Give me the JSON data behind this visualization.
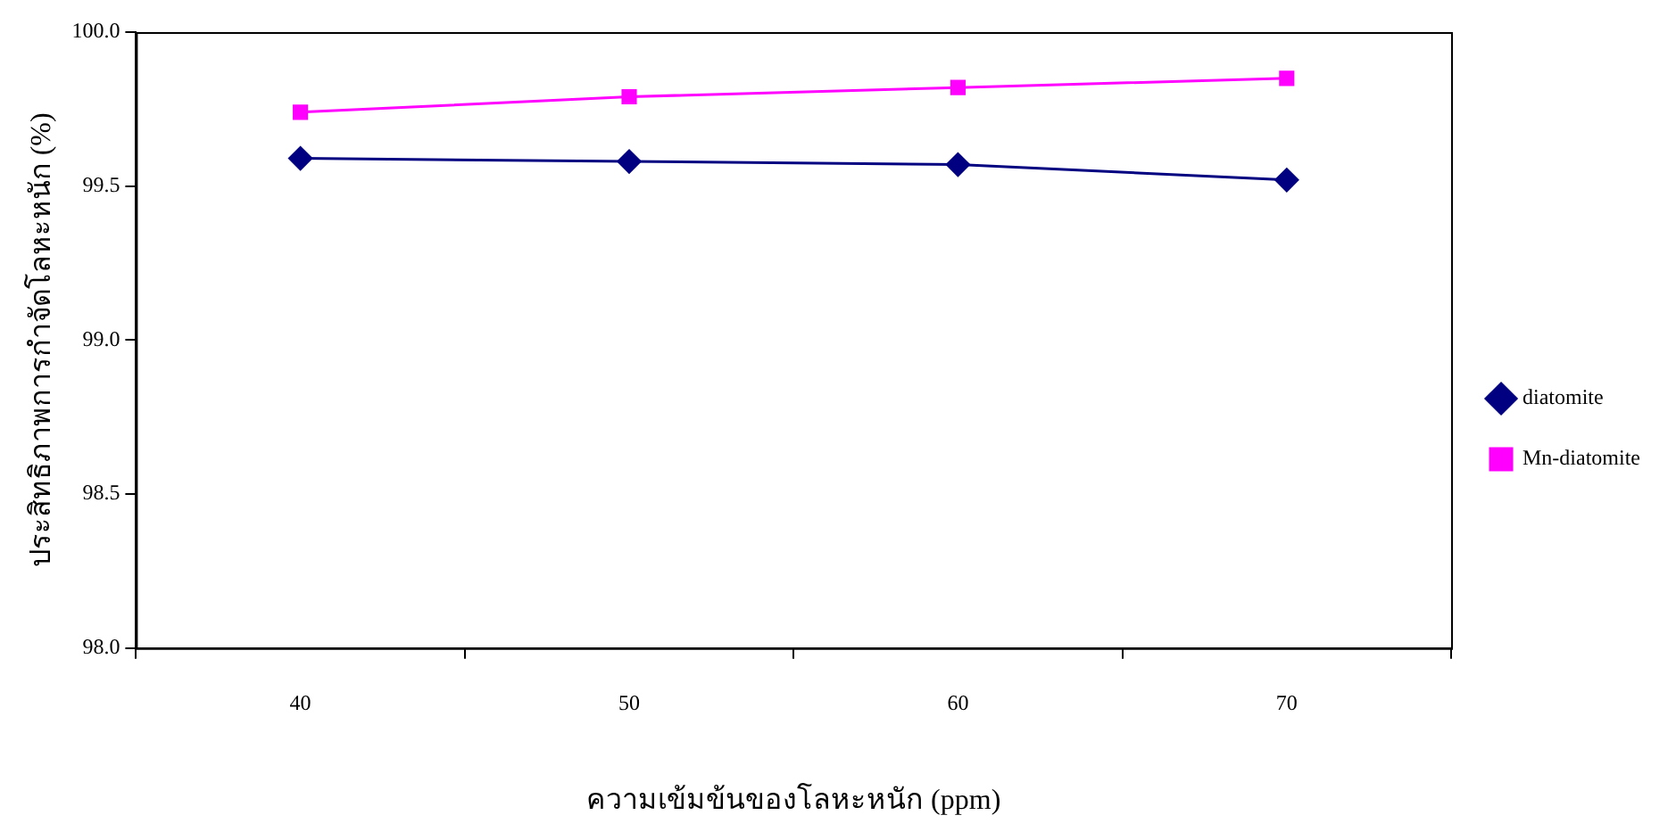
{
  "chart_data": {
    "type": "line",
    "xlabel": "ความเข้มข้นของโลหะหนัก (ppm)",
    "ylabel": "ประสิทธิภาพการกำจัดโลหะหนัก (%)",
    "categories": [
      "40",
      "50",
      "60",
      "70"
    ],
    "series": [
      {
        "name": "diatomite",
        "color": "#000080",
        "marker": "diamond",
        "values": [
          99.59,
          99.58,
          99.57,
          99.52
        ]
      },
      {
        "name": "Mn-diatomite",
        "color": "#ff00ff",
        "marker": "square",
        "values": [
          99.74,
          99.79,
          99.82,
          99.85
        ]
      }
    ],
    "ylim": [
      98,
      100
    ],
    "yticks": [
      {
        "value": 98,
        "label": "98.0"
      },
      {
        "value": 98.5,
        "label": "98.5"
      },
      {
        "value": 99,
        "label": "99.0"
      },
      {
        "value": 99.5,
        "label": "99.5"
      },
      {
        "value": 100,
        "label": "100.0"
      }
    ],
    "grid": false,
    "legend": "right",
    "line_style": "solid"
  }
}
